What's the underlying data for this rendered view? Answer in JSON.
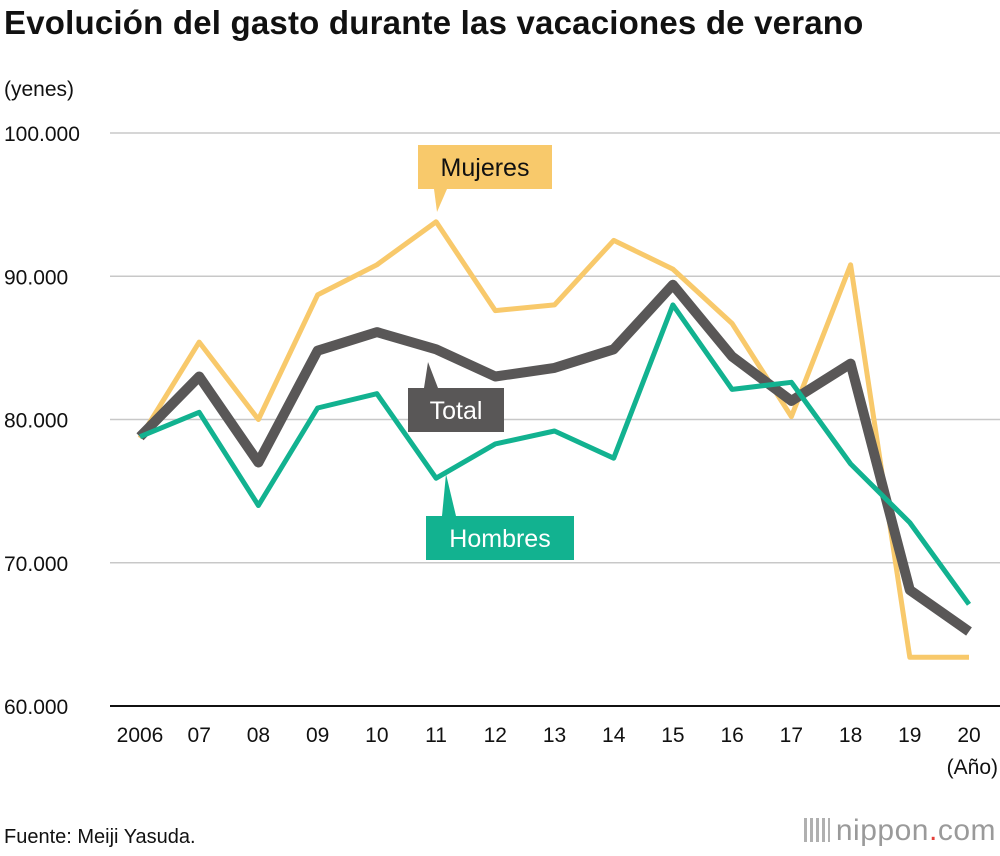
{
  "title": "Evolución del gasto durante las vacaciones de verano",
  "source": "Fuente: Meiji Yasuda.",
  "logo": {
    "name": "nippon",
    "dot": ".",
    "tld": "com"
  },
  "chart_data": {
    "type": "line",
    "title": "Evolución del gasto durante las vacaciones de verano",
    "ylabel": "(yenes)",
    "xlabel": "(Año)",
    "categories": [
      "2006",
      "07",
      "08",
      "09",
      "10",
      "11",
      "12",
      "13",
      "14",
      "15",
      "16",
      "17",
      "18",
      "19",
      "20"
    ],
    "ylim": [
      60000,
      100000
    ],
    "yticks": [
      60000,
      70000,
      80000,
      90000,
      100000
    ],
    "ytick_labels": [
      "60.000",
      "70.000",
      "80.000",
      "90.000",
      "100.000"
    ],
    "grid": true,
    "series": [
      {
        "name": "Mujeres",
        "color": "#f8c96b",
        "values": [
          78700,
          85400,
          80000,
          88700,
          90800,
          93800,
          87600,
          88000,
          92500,
          90500,
          86700,
          80200,
          90800,
          63400,
          63400
        ]
      },
      {
        "name": "Total",
        "color": "#595757",
        "values": [
          78800,
          83000,
          77000,
          84800,
          86100,
          84900,
          83000,
          83600,
          84900,
          89400,
          84400,
          81300,
          83900,
          68100,
          65200
        ]
      },
      {
        "name": "Hombres",
        "color": "#12b290",
        "values": [
          78800,
          80500,
          74000,
          80800,
          81800,
          75900,
          78300,
          79200,
          77300,
          88000,
          82100,
          82600,
          76900,
          72800,
          67100
        ]
      }
    ]
  }
}
